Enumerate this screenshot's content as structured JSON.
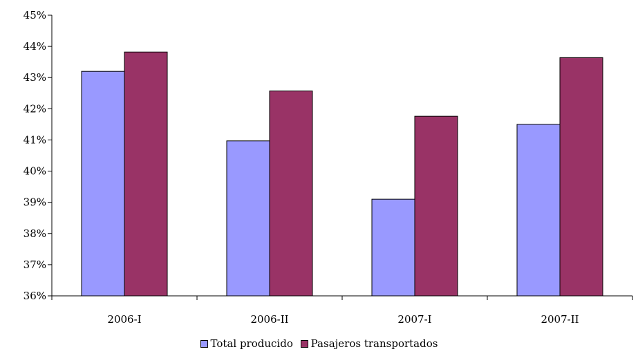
{
  "chart_data": {
    "type": "bar",
    "categories": [
      "2006-I",
      "2006-II",
      "2007-I",
      "2007-II"
    ],
    "series": [
      {
        "name": "Total producido",
        "color": "#9999ff",
        "values": [
          43.2,
          40.97,
          39.1,
          41.5
        ]
      },
      {
        "name": "Pasajeros transportados",
        "color": "#993366",
        "values": [
          43.82,
          42.57,
          41.76,
          43.64
        ]
      }
    ],
    "ylim": [
      36,
      45
    ],
    "yticks": [
      "36%",
      "37%",
      "38%",
      "39%",
      "40%",
      "41%",
      "42%",
      "43%",
      "44%",
      "45%"
    ],
    "title": "",
    "xlabel": "",
    "ylabel": "",
    "grid": false,
    "legend_position": "bottom"
  }
}
